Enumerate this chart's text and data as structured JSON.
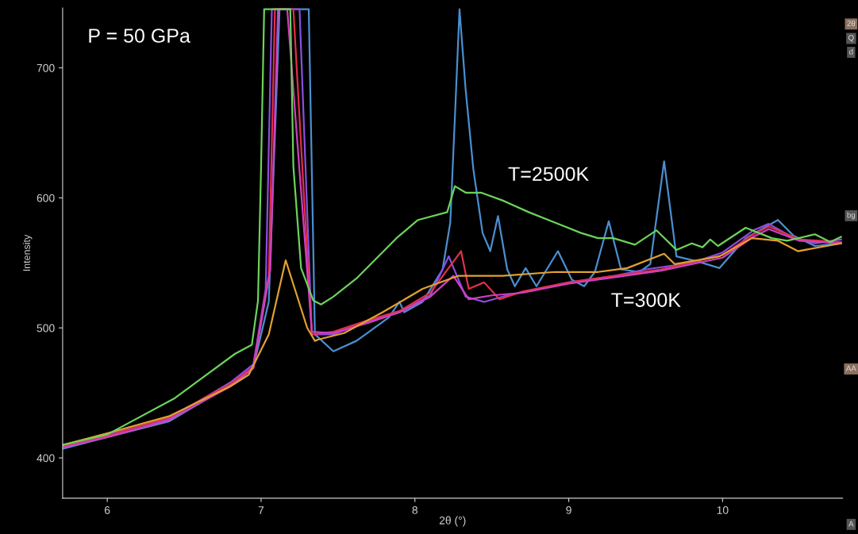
{
  "chart_data": {
    "type": "line",
    "xlabel": "2θ (°)",
    "ylabel": "Intensity",
    "xlim": [
      5.71,
      10.78
    ],
    "ylim": [
      369,
      746
    ],
    "xticks": [
      6,
      7,
      8,
      9,
      10
    ],
    "yticks": [
      400,
      500,
      600,
      700
    ],
    "grid": false,
    "legend": false,
    "marker": "none",
    "line_style": "solid",
    "annotations": [
      "P = 50 GPa",
      "T=2500K",
      "T=300K",
      "2θ",
      "Q",
      "d",
      "bg",
      "AA",
      "A"
    ],
    "series": [
      {
        "color": "#4a8fd0",
        "x": [
          5.71,
          6.0,
          6.4,
          6.8,
          6.95,
          7.05,
          7.1,
          7.12,
          7.31,
          7.35,
          7.47,
          7.62,
          7.83,
          7.9,
          7.93,
          8.05,
          8.18,
          8.23,
          8.26,
          8.29,
          8.33,
          8.38,
          8.44,
          8.49,
          8.54,
          8.6,
          8.65,
          8.72,
          8.79,
          8.93,
          9.02,
          9.1,
          9.17,
          9.26,
          9.34,
          9.46,
          9.53,
          9.62,
          9.7,
          9.84,
          9.98,
          10.15,
          10.36,
          10.46,
          10.6,
          10.77
        ],
        "values": [
          407,
          416,
          428,
          456,
          470,
          520,
          680,
          745,
          745,
          495,
          482,
          490,
          508,
          520,
          512,
          520,
          545,
          581,
          662,
          745,
          683,
          622,
          573,
          559,
          586,
          545,
          532,
          546,
          532,
          559,
          537,
          532,
          543,
          582,
          545,
          543,
          549,
          628,
          555,
          551,
          546,
          569,
          583,
          571,
          563,
          565
        ]
      },
      {
        "color": "#8a4fe0",
        "x": [
          5.71,
          6.0,
          6.4,
          6.8,
          6.95,
          7.03,
          7.07,
          7.25,
          7.33,
          7.47,
          7.7,
          7.9,
          8.1,
          8.22,
          8.33,
          8.45,
          8.6,
          8.8,
          9.0,
          9.3,
          9.5,
          9.8,
          10.0,
          10.2,
          10.3,
          10.45,
          10.6,
          10.77
        ],
        "values": [
          408,
          418,
          430,
          458,
          472,
          530,
          745,
          745,
          495,
          495,
          505,
          512,
          525,
          555,
          524,
          520,
          525,
          530,
          535,
          540,
          545,
          550,
          558,
          575,
          580,
          570,
          565,
          568
        ]
      },
      {
        "color": "#e0304a",
        "x": [
          5.71,
          6.0,
          6.4,
          6.8,
          6.95,
          7.05,
          7.09,
          7.21,
          7.33,
          7.47,
          7.7,
          7.9,
          8.1,
          8.3,
          8.35,
          8.45,
          8.55,
          8.7,
          9.0,
          9.3,
          9.6,
          10.0,
          10.2,
          10.3,
          10.5,
          10.77
        ],
        "values": [
          409,
          417,
          431,
          457,
          470,
          540,
          745,
          745,
          495,
          497,
          506,
          513,
          527,
          559,
          530,
          535,
          522,
          528,
          535,
          540,
          545,
          556,
          572,
          578,
          568,
          566
        ]
      },
      {
        "color": "#d040c0",
        "x": [
          5.71,
          6.0,
          6.4,
          6.8,
          6.95,
          7.06,
          7.11,
          7.17,
          7.33,
          7.47,
          7.7,
          7.9,
          8.1,
          8.25,
          8.35,
          8.5,
          8.7,
          9.0,
          9.3,
          9.6,
          10.0,
          10.2,
          10.3,
          10.5,
          10.77
        ],
        "values": [
          408,
          416,
          429,
          455,
          469,
          545,
          745,
          745,
          497,
          496,
          504,
          512,
          524,
          540,
          522,
          525,
          527,
          534,
          539,
          544,
          554,
          570,
          576,
          567,
          565
        ]
      },
      {
        "color": "#e0a030",
        "x": [
          5.71,
          6.0,
          6.4,
          6.8,
          6.92,
          7.05,
          7.16,
          7.3,
          7.35,
          7.37,
          7.54,
          7.79,
          8.05,
          8.28,
          8.57,
          8.91,
          9.19,
          9.38,
          9.62,
          9.69,
          9.98,
          10.19,
          10.36,
          10.49,
          10.77
        ],
        "values": [
          410,
          419,
          432,
          455,
          464,
          495,
          552,
          500,
          490,
          491,
          496,
          512,
          530,
          540,
          540,
          543,
          543,
          546,
          557,
          549,
          555,
          569,
          567,
          559,
          565
        ]
      },
      {
        "color": "#6bd35a",
        "x": [
          5.71,
          6.0,
          6.44,
          6.83,
          6.94,
          6.98,
          7.0,
          7.02,
          7.19,
          7.21,
          7.26,
          7.34,
          7.39,
          7.47,
          7.62,
          7.78,
          7.88,
          8.02,
          8.21,
          8.26,
          8.33,
          8.43,
          8.57,
          8.74,
          8.91,
          9.08,
          9.19,
          9.29,
          9.43,
          9.57,
          9.7,
          9.8,
          9.87,
          9.92,
          9.97,
          10.15,
          10.32,
          10.42,
          10.6,
          10.7,
          10.77
        ],
        "values": [
          410,
          418,
          446,
          480,
          487,
          521,
          624,
          745,
          745,
          624,
          546,
          521,
          518,
          524,
          538,
          557,
          569,
          583,
          589,
          609,
          604,
          604,
          598,
          589,
          581,
          573,
          569,
          569,
          564,
          575,
          560,
          565,
          562,
          568,
          563,
          577,
          569,
          567,
          572,
          566,
          570
        ]
      }
    ]
  }
}
